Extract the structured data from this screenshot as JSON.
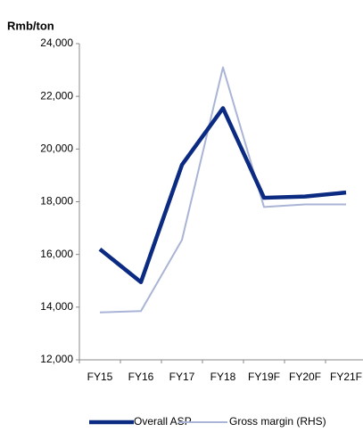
{
  "chart_data": {
    "type": "line",
    "y_label": "Rmb/ton",
    "categories": [
      "FY15",
      "FY16",
      "FY17",
      "FY18",
      "FY19F",
      "FY20F",
      "FY21F"
    ],
    "series": [
      {
        "name": "Overall ASP",
        "color": "#0b2a82",
        "values": [
          16200,
          14950,
          19400,
          21550,
          18150,
          18200,
          18350
        ]
      },
      {
        "name": "Gross margin (RHS)",
        "color": "#a9b4d6",
        "values": [
          13800,
          13850,
          16550,
          23100,
          17800,
          17900,
          17900
        ]
      }
    ],
    "ylim": [
      12000,
      24000
    ],
    "yticks": [
      {
        "value": 12000,
        "label": "12,000"
      },
      {
        "value": 14000,
        "label": "14,000"
      },
      {
        "value": 16000,
        "label": "16,000"
      },
      {
        "value": 18000,
        "label": "18,000"
      },
      {
        "value": 20000,
        "label": "20,000"
      },
      {
        "value": 22000,
        "label": "22,000"
      },
      {
        "value": 24000,
        "label": "24,000"
      }
    ],
    "grid": false,
    "legend": "bottom"
  }
}
